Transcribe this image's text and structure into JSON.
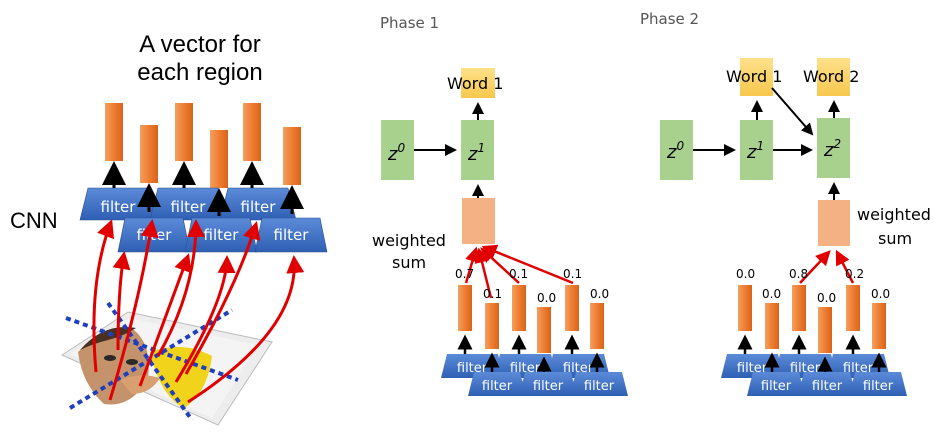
{
  "left": {
    "title_line1": "A vector for",
    "title_line2": "each region",
    "cnn_label": "CNN",
    "filter_label": "filter"
  },
  "phase1": {
    "title": "Phase 1",
    "word_label": "Word 1",
    "z0_base": "z",
    "z0_sup": "0",
    "z1_base": "z",
    "z1_sup": "1",
    "weighted_line1": "weighted",
    "weighted_line2": "sum",
    "weights": [
      "0.7",
      "0.1",
      "0.1",
      "0.0",
      "0.1",
      "0.0"
    ],
    "filter_label": "filter"
  },
  "phase2": {
    "title": "Phase 2",
    "word1_label": "Word 1",
    "word2_label": "Word 2",
    "z0_base": "z",
    "z0_sup": "0",
    "z1_base": "z",
    "z1_sup": "1",
    "z2_base": "z",
    "z2_sup": "2",
    "weighted_line1": "weighted",
    "weighted_line2": "sum",
    "weights": [
      "0.0",
      "0.0",
      "0.8",
      "0.0",
      "0.2",
      "0.0"
    ],
    "filter_label": "filter"
  },
  "colors": {
    "orange": "#ED7D31",
    "filter_blue": "#4472C4",
    "word_yellow": "#FFD966",
    "z_green": "#A9D18E",
    "sum_pink": "#F4B183",
    "red_arrow": "#E00000",
    "dash_blue": "#1F3FBF"
  }
}
